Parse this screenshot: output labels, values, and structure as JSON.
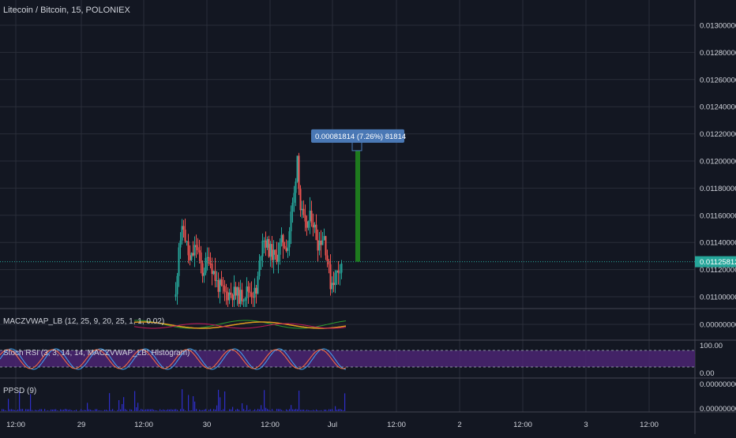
{
  "header": {
    "title": "Litecoin / Bitcoin, 15, POLONIEX"
  },
  "colors": {
    "background": "#131722",
    "grid": "#2a2e39",
    "up": "#26a69a",
    "down": "#ef5350",
    "price_line": "#26a69a",
    "measure": "#1e7a1e",
    "measure_label_bg": "#4a78b5",
    "rsi_band": "#4b2472",
    "histogram": "#2e2ec8"
  },
  "price_axis": {
    "ticks": [
      "0.01300000",
      "0.01280000",
      "0.01260000",
      "0.01240000",
      "0.01220000",
      "0.01200000",
      "0.01180000",
      "0.01160000",
      "0.01140000",
      "0.01120000",
      "0.01100000"
    ],
    "tick_values": [
      0.013,
      0.0128,
      0.0126,
      0.0124,
      0.0122,
      0.012,
      0.0118,
      0.0116,
      0.0114,
      0.0112,
      0.011
    ],
    "current_price": "0.01125812"
  },
  "time_axis": {
    "labels": [
      "12:00",
      "29",
      "12:00",
      "30",
      "12:00",
      "Jul",
      "12:00",
      "2",
      "12:00",
      "3",
      "12:00"
    ]
  },
  "measure_tool": {
    "label": "0.00081814 (7.26%) 81814"
  },
  "indicators": {
    "macz": {
      "label": "MACZVWAP_LB (12, 25, 9, 20, 25, 1, 1, 0.02)",
      "axis_value": "0.00000000"
    },
    "stoch": {
      "label": "Stoch RSI (3, 3, 14, 14, MACZVWAP_LB: Histogram)",
      "axis_top": "100.00",
      "axis_bottom": "0.00"
    },
    "ppsd": {
      "label": "PPSD (9)",
      "axis_top": "0.00000000",
      "axis_bottom": "0.00000000"
    }
  },
  "chart_data": {
    "type": "candlestick",
    "title": "Litecoin / Bitcoin, 15, POLONIEX",
    "ylim": [
      0.01093,
      0.01313
    ],
    "visible_candles_approx": {
      "first_candle_time": "29 ~22:00",
      "low": 0.01093,
      "high": 0.01212,
      "last_close": 0.01125812
    },
    "measured_move": {
      "from": 0.01125812,
      "to": 0.01207626,
      "change": 0.00081814,
      "percent": 7.26
    }
  }
}
